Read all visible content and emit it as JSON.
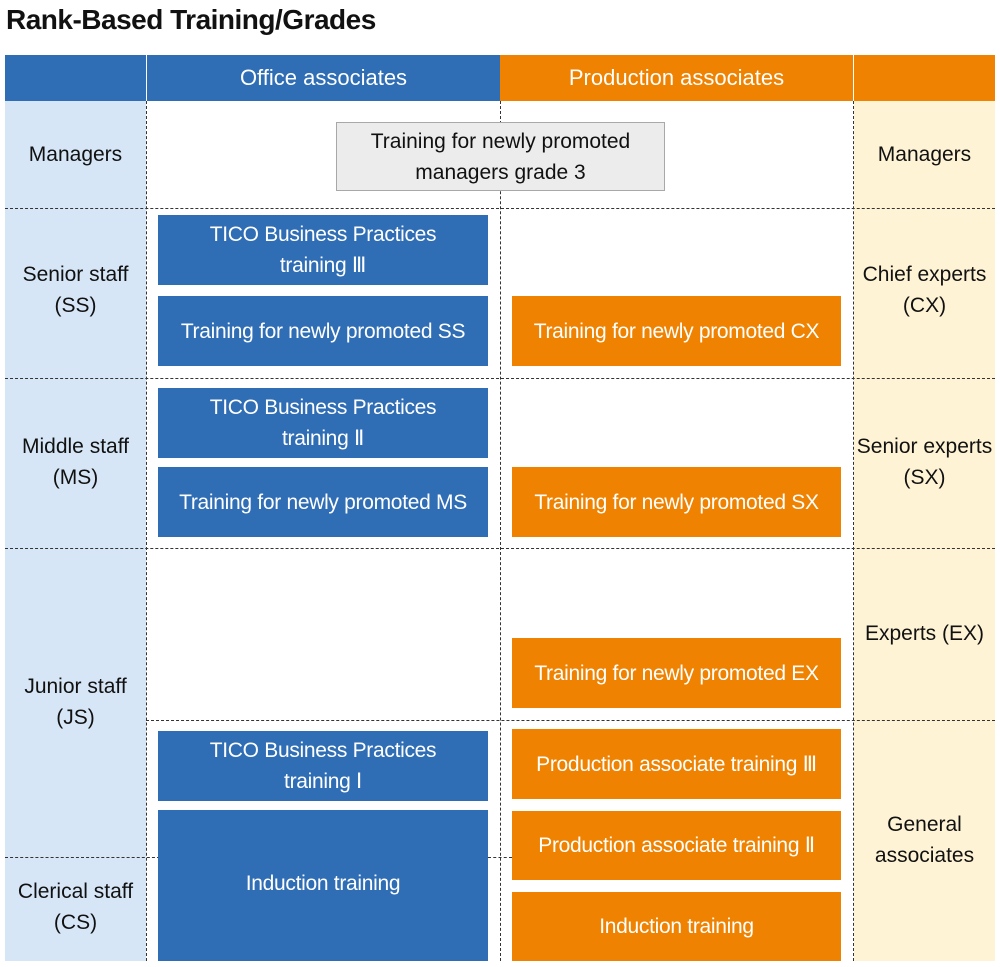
{
  "title": "Rank-Based Training/Grades",
  "headers": {
    "office": "Office associates",
    "production": "Production associates"
  },
  "colors": {
    "blue": "#2f6db5",
    "orange": "#ef8200",
    "left_bg": "#d6e6f6",
    "right_bg": "#fff3d6"
  },
  "left_ranks": [
    {
      "line1": "Managers",
      "line2": ""
    },
    {
      "line1": "Senior staff",
      "line2": "(SS)"
    },
    {
      "line1": "Middle staff",
      "line2": "(MS)"
    },
    {
      "line1": "Junior staff",
      "line2": "(JS)"
    },
    {
      "line1": "Clerical staff",
      "line2": "(CS)"
    }
  ],
  "right_ranks": [
    {
      "line1": "Managers",
      "line2": ""
    },
    {
      "line1": "Chief experts",
      "line2": "(CX)"
    },
    {
      "line1": "Senior experts",
      "line2": "(SX)"
    },
    {
      "line1": "Experts (EX)",
      "line2": ""
    },
    {
      "line1": "General",
      "line2": "associates"
    }
  ],
  "common": {
    "line1": "Training for newly promoted",
    "line2": "managers grade 3"
  },
  "office": [
    {
      "line1": "TICO Business Practices",
      "line2": "training Ⅲ"
    },
    {
      "line1": "Training for newly promoted SS",
      "line2": ""
    },
    {
      "line1": "TICO Business Practices",
      "line2": "training Ⅱ"
    },
    {
      "line1": "Training for newly promoted MS",
      "line2": ""
    },
    {
      "line1": "TICO Business Practices",
      "line2": "training Ⅰ"
    },
    {
      "line1": "Induction training",
      "line2": ""
    }
  ],
  "production": [
    {
      "line1": "Training for newly promoted CX",
      "line2": ""
    },
    {
      "line1": "Training for newly promoted SX",
      "line2": ""
    },
    {
      "line1": "Training for newly promoted EX",
      "line2": ""
    },
    {
      "line1": "Production associate training Ⅲ",
      "line2": ""
    },
    {
      "line1": "Production associate training Ⅱ",
      "line2": ""
    },
    {
      "line1": "Induction training",
      "line2": ""
    }
  ]
}
